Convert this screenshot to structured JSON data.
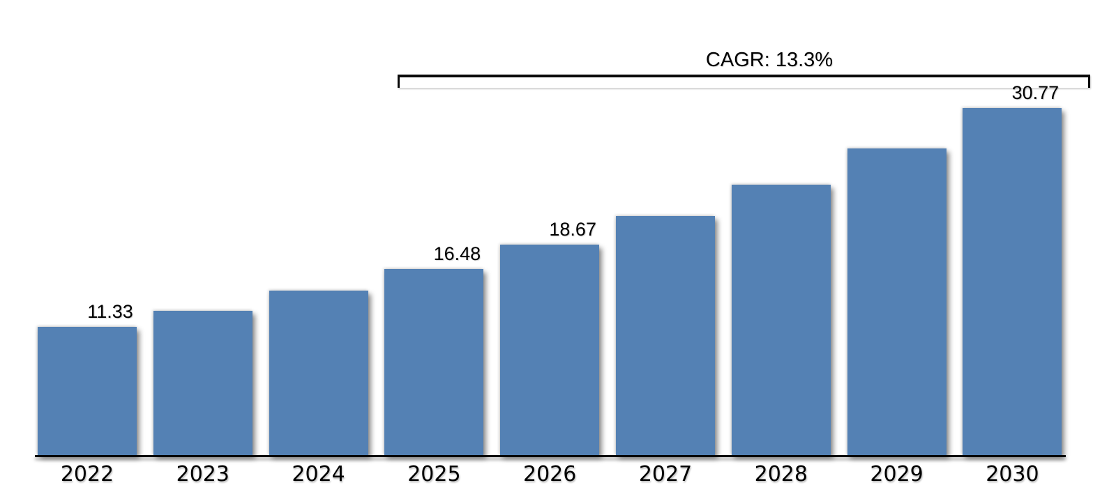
{
  "chart_data": {
    "type": "bar",
    "title": "",
    "xlabel": "",
    "ylabel": "",
    "categories": [
      "2022",
      "2023",
      "2024",
      "2025",
      "2026",
      "2027",
      "2028",
      "2029",
      "2030"
    ],
    "values": [
      11.33,
      12.76,
      14.55,
      16.48,
      18.67,
      21.15,
      23.96,
      27.15,
      30.77
    ],
    "data_labels": [
      "11.33",
      null,
      null,
      "16.48",
      "18.67",
      null,
      null,
      null,
      "30.77"
    ],
    "annotation": {
      "label": "CAGR: 13.3%",
      "span_start": "2025",
      "span_end": "2030"
    },
    "bar_color": "#5481b4",
    "axis_color": "#000000",
    "text_color": "#000000",
    "ylim": [
      0,
      33
    ],
    "grid": false,
    "legend": false
  }
}
